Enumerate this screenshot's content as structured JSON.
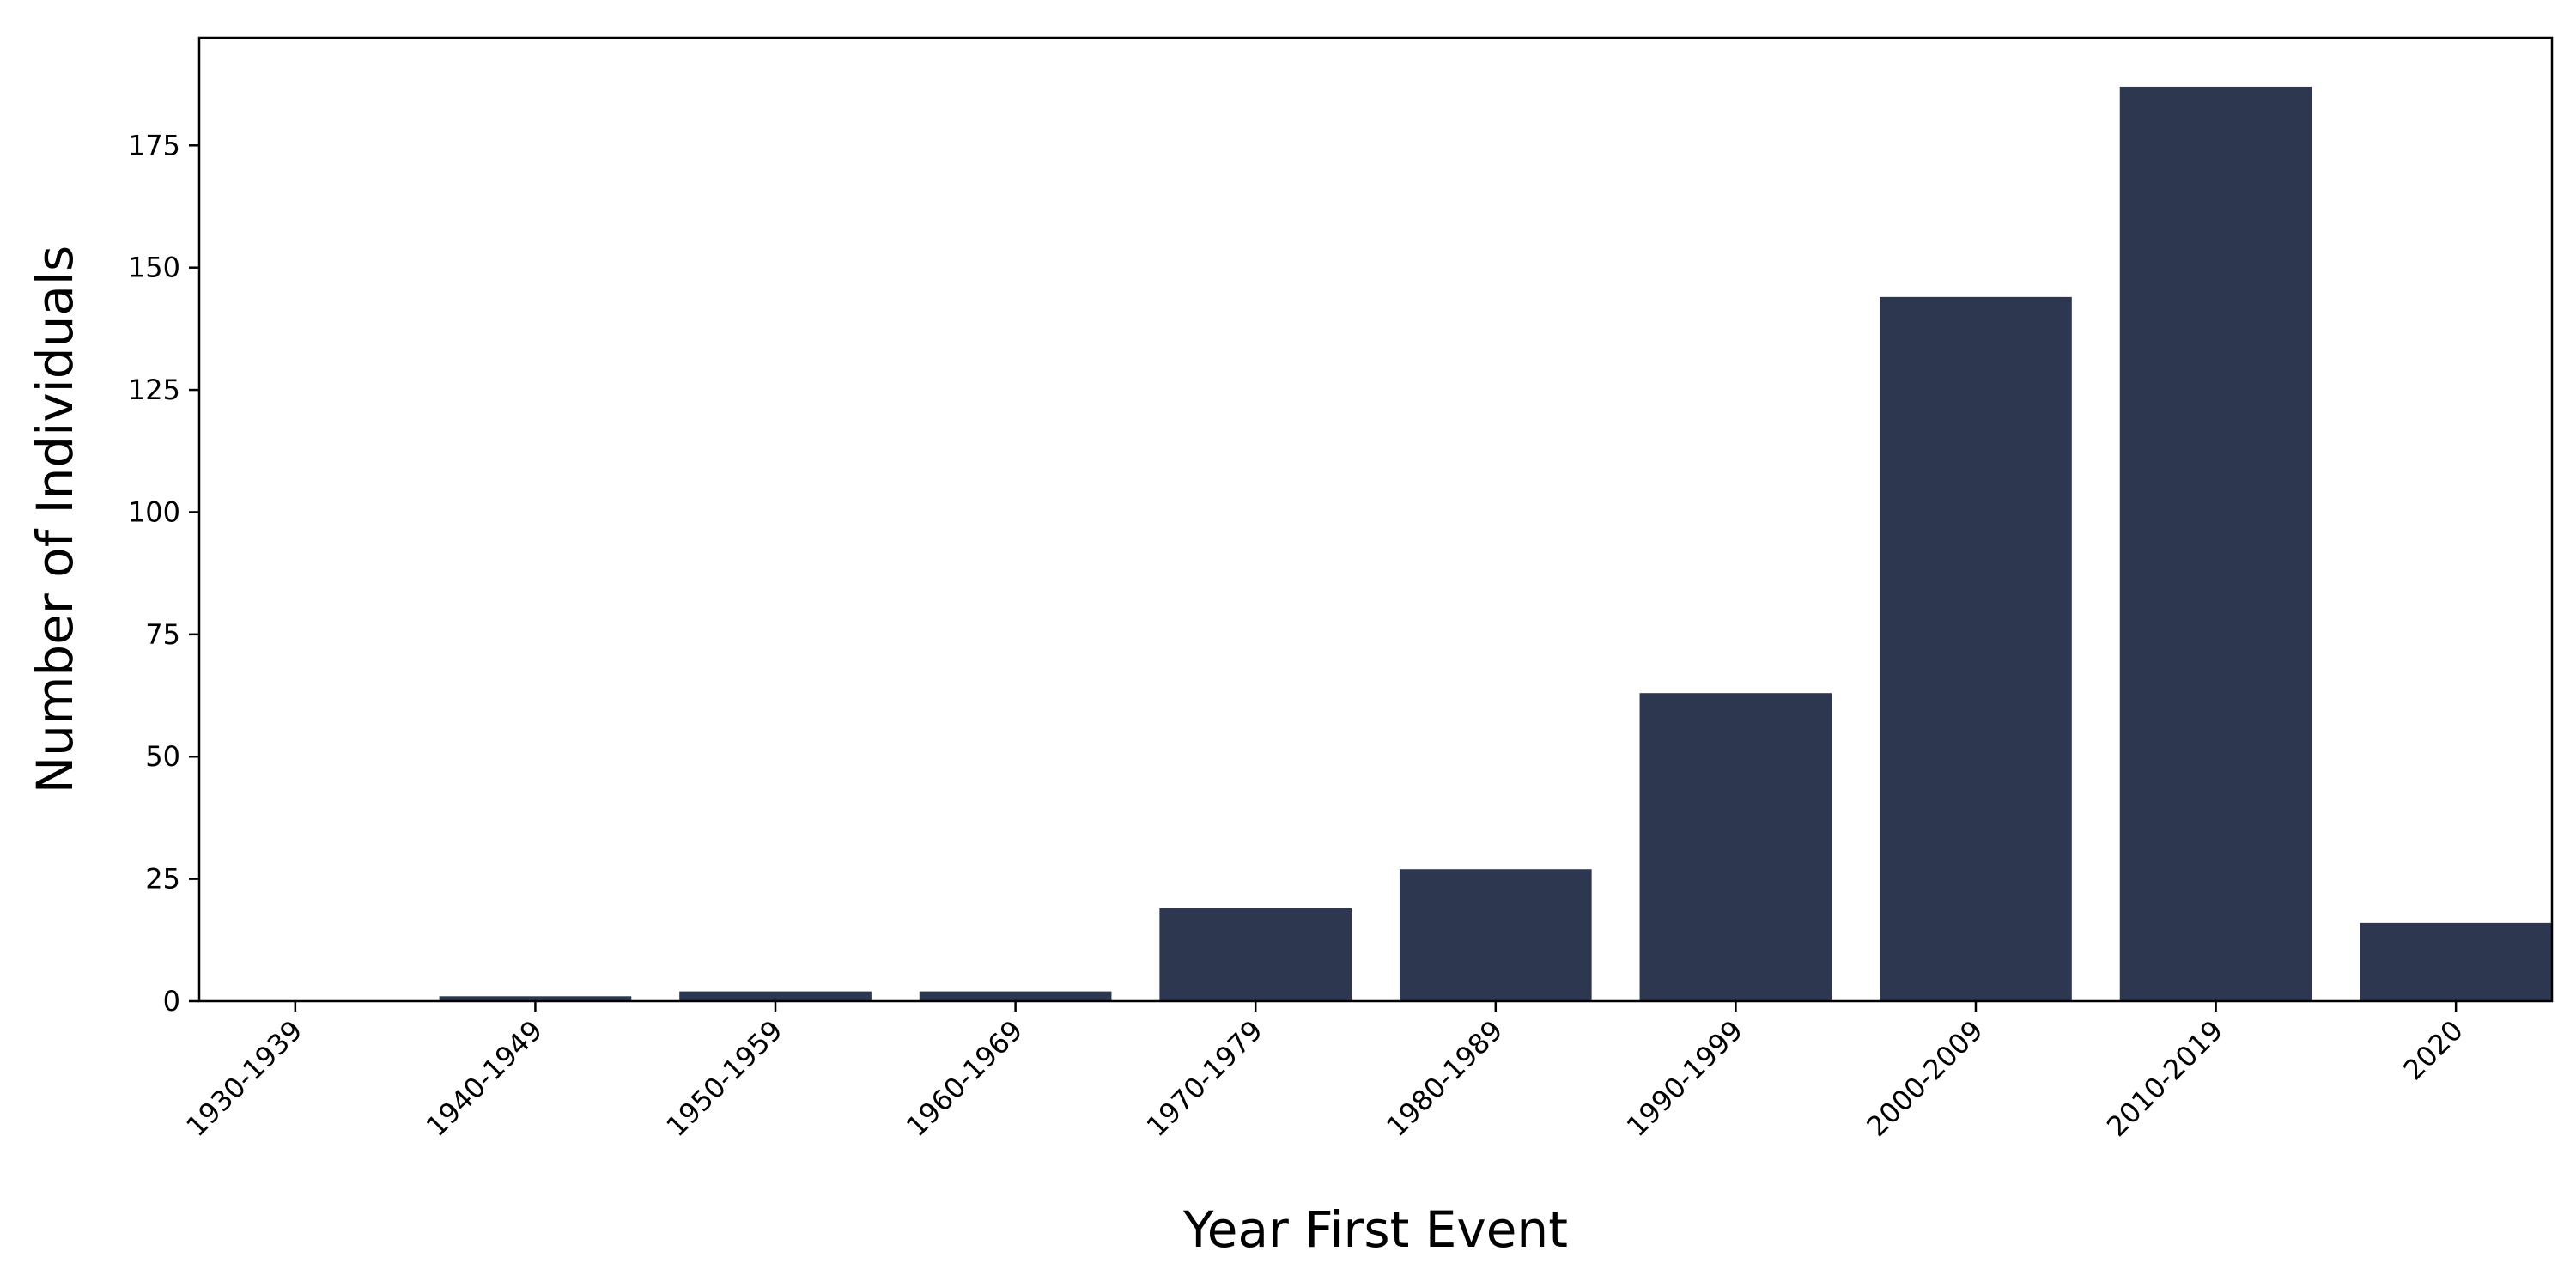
{
  "chart_data": {
    "type": "bar",
    "title": "",
    "xlabel": "Year First Event",
    "ylabel": "Number of Individuals",
    "categories": [
      "1930-1939",
      "1940-1949",
      "1950-1959",
      "1960-1969",
      "1970-1979",
      "1980-1989",
      "1990-1999",
      "2000-2009",
      "2010-2019",
      "2020"
    ],
    "values": [
      0,
      1,
      2,
      2,
      19,
      27,
      63,
      144,
      187,
      16
    ],
    "ylim": [
      0,
      197
    ],
    "yticks": [
      0,
      25,
      50,
      75,
      100,
      125,
      150,
      175
    ],
    "bar_color": "#2d3850",
    "grid": false,
    "legend": "none"
  }
}
